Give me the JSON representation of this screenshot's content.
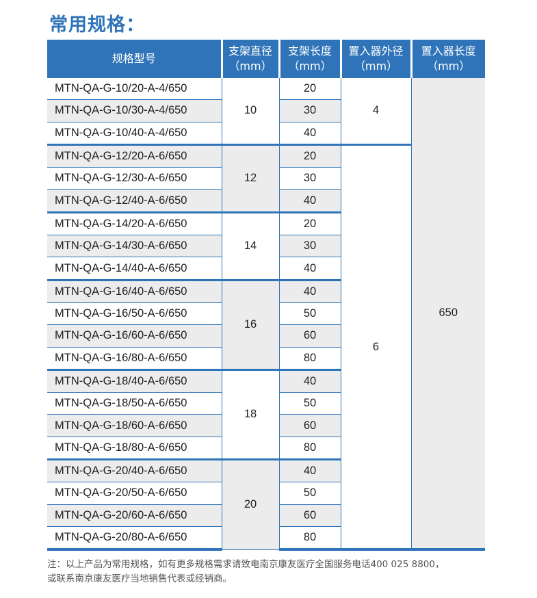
{
  "title": "常用规格：",
  "headers": [
    {
      "line1": "规格型号",
      "line2": ""
    },
    {
      "line1": "支架直径",
      "line2": "（mm）"
    },
    {
      "line1": "支架长度",
      "line2": "（mm）"
    },
    {
      "line1": "置入器外径",
      "line2": "（mm）"
    },
    {
      "line1": "置入器长度",
      "line2": "（mm）"
    }
  ],
  "groups": [
    {
      "diameter": "10",
      "rows": [
        {
          "model": "MTN-QA-G-10/20-A-4/650",
          "length": "20"
        },
        {
          "model": "MTN-QA-G-10/30-A-4/650",
          "length": "30"
        },
        {
          "model": "MTN-QA-G-10/40-A-4/650",
          "length": "40"
        }
      ]
    },
    {
      "diameter": "12",
      "rows": [
        {
          "model": "MTN-QA-G-12/20-A-6/650",
          "length": "20"
        },
        {
          "model": "MTN-QA-G-12/30-A-6/650",
          "length": "30"
        },
        {
          "model": "MTN-QA-G-12/40-A-6/650",
          "length": "40"
        }
      ]
    },
    {
      "diameter": "14",
      "rows": [
        {
          "model": "MTN-QA-G-14/20-A-6/650",
          "length": "20"
        },
        {
          "model": "MTN-QA-G-14/30-A-6/650",
          "length": "30"
        },
        {
          "model": "MTN-QA-G-14/40-A-6/650",
          "length": "40"
        }
      ]
    },
    {
      "diameter": "16",
      "rows": [
        {
          "model": "MTN-QA-G-16/40-A-6/650",
          "length": "40"
        },
        {
          "model": "MTN-QA-G-16/50-A-6/650",
          "length": "50"
        },
        {
          "model": "MTN-QA-G-16/60-A-6/650",
          "length": "60"
        },
        {
          "model": "MTN-QA-G-16/80-A-6/650",
          "length": "80"
        }
      ]
    },
    {
      "diameter": "18",
      "rows": [
        {
          "model": "MTN-QA-G-18/40-A-6/650",
          "length": "40"
        },
        {
          "model": "MTN-QA-G-18/50-A-6/650",
          "length": "50"
        },
        {
          "model": "MTN-QA-G-18/60-A-6/650",
          "length": "60"
        },
        {
          "model": "MTN-QA-G-18/80-A-6/650",
          "length": "80"
        }
      ]
    },
    {
      "diameter": "20",
      "rows": [
        {
          "model": "MTN-QA-G-20/40-A-6/650",
          "length": "40"
        },
        {
          "model": "MTN-QA-G-20/50-A-6/650",
          "length": "50"
        },
        {
          "model": "MTN-QA-G-20/60-A-6/650",
          "length": "60"
        },
        {
          "model": "MTN-QA-G-20/80-A-6/650",
          "length": "80"
        }
      ]
    }
  ],
  "outer_diameter": [
    {
      "value": "4",
      "rows": 3
    },
    {
      "value": "6",
      "rows": 18
    }
  ],
  "introducer_length": "650",
  "note": {
    "line1": "注：以上产品为常用规格，如有更多规格需求请致电南京康友医疗全国服务电话400 025 8800，",
    "line2": "或联系南京康友医疗当地销售代表或经销商。"
  },
  "colors": {
    "accent": "#2f74b8",
    "stripe": "#ebeceb"
  }
}
